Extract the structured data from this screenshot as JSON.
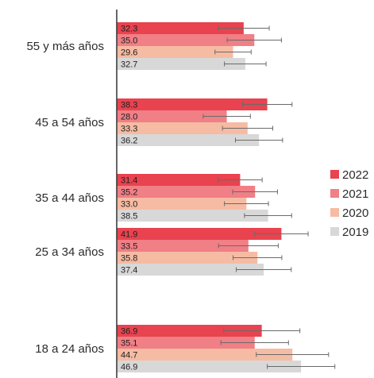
{
  "chart_data": {
    "type": "bar",
    "orientation": "horizontal",
    "categories": [
      "55 y más años",
      "45 a 54 años",
      "35 a 44 años",
      "25 a 34 años",
      "18 a 24 años"
    ],
    "series": [
      {
        "name": "2022",
        "color": "#e8434f",
        "values": [
          32.3,
          38.3,
          31.4,
          41.9,
          36.9
        ],
        "error": [
          6.5,
          6.3,
          5.6,
          6.8,
          9.7
        ]
      },
      {
        "name": "2021",
        "color": "#f07f86",
        "values": [
          35.0,
          28.0,
          35.2,
          33.5,
          35.1
        ],
        "error": [
          6.9,
          6.0,
          5.7,
          7.6,
          8.6
        ]
      },
      {
        "name": "2020",
        "color": "#f6bba3",
        "values": [
          29.6,
          33.3,
          33.0,
          35.8,
          44.7
        ],
        "error": [
          4.6,
          6.4,
          5.6,
          6.2,
          9.2
        ]
      },
      {
        "name": "2019",
        "color": "#d8d8d8",
        "values": [
          32.7,
          36.2,
          38.5,
          37.4,
          46.9
        ],
        "error": [
          5.3,
          6.0,
          6.0,
          7.0,
          8.6
        ]
      }
    ],
    "xlim": [
      0,
      60
    ],
    "legend": "right",
    "grid": false,
    "show_value_labels": true,
    "error_bars": true
  }
}
